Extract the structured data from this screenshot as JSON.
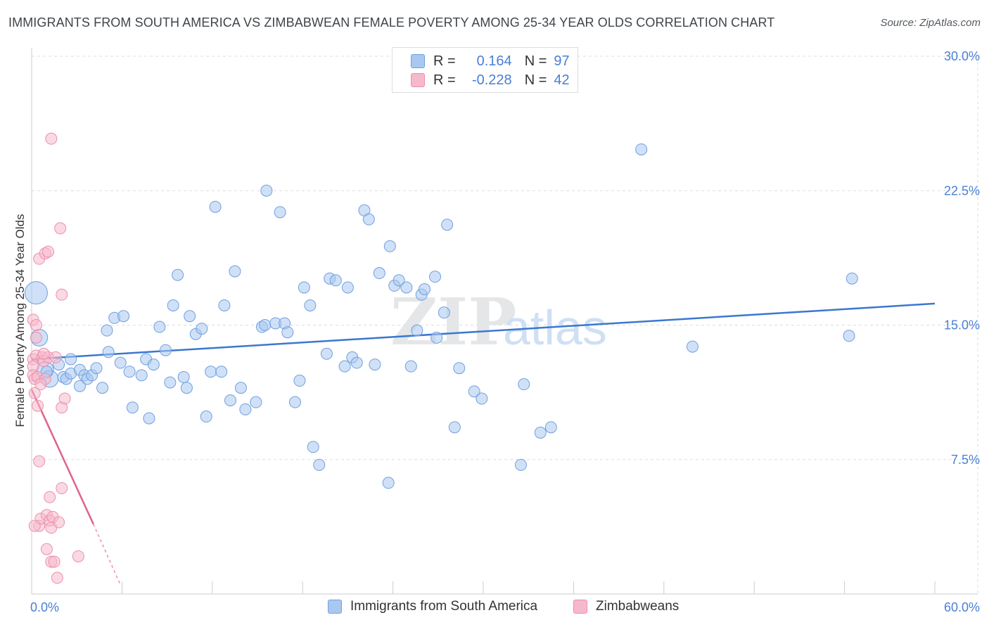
{
  "title": "IMMIGRANTS FROM SOUTH AMERICA VS ZIMBABWEAN FEMALE POVERTY AMONG 25-34 YEAR OLDS CORRELATION CHART",
  "source": "Source: ZipAtlas.com",
  "watermark": {
    "zip": "ZIP",
    "atlas": "atlas"
  },
  "legend": {
    "blue": {
      "r_label": "R =",
      "r_value": "0.164",
      "n_label": "N =",
      "n_value": "97"
    },
    "pink": {
      "r_label": "R =",
      "r_value": "-0.228",
      "n_label": "N =",
      "n_value": "42"
    }
  },
  "colors": {
    "blue_fill": "#a9c8f0",
    "blue_stroke": "#6f9fe0",
    "blue_line": "#3a78cf",
    "pink_fill": "#f6b9cc",
    "pink_stroke": "#ec8fac",
    "pink_line": "#e0628b",
    "tick_label": "#4a7fd6",
    "grid": "#dddddd"
  },
  "chart_data": {
    "type": "scatter",
    "title": "IMMIGRANTS FROM SOUTH AMERICA VS ZIMBABWEAN FEMALE POVERTY AMONG 25-34 YEAR OLDS CORRELATION CHART",
    "xlabel": "",
    "ylabel": "Female Poverty Among 25-34 Year Olds",
    "xlim": [
      0,
      60
    ],
    "ylim": [
      0,
      30
    ],
    "x_tick_labels": [
      "0.0%",
      "60.0%"
    ],
    "y_ticks": [
      7.5,
      15.0,
      22.5,
      30.0
    ],
    "y_tick_labels": [
      "7.5%",
      "15.0%",
      "22.5%",
      "30.0%"
    ],
    "grid": true,
    "series": [
      {
        "name": "Immigrants from South America",
        "color": "blue",
        "r": 0.164,
        "n": 97,
        "trend": {
          "x": [
            0,
            60
          ],
          "y": [
            13.1,
            16.2
          ]
        },
        "points": [
          {
            "x": 0.3,
            "y": 16.8,
            "s": 3
          },
          {
            "x": 0.5,
            "y": 14.3,
            "s": 2
          },
          {
            "x": 0.9,
            "y": 12.5,
            "s": 2
          },
          {
            "x": 1.2,
            "y": 12.0,
            "s": 2
          },
          {
            "x": 1.8,
            "y": 12.8,
            "s": 1
          },
          {
            "x": 2.1,
            "y": 12.1,
            "s": 1
          },
          {
            "x": 2.3,
            "y": 12.0,
            "s": 1
          },
          {
            "x": 2.6,
            "y": 12.3,
            "s": 1
          },
          {
            "x": 2.6,
            "y": 13.1,
            "s": 1
          },
          {
            "x": 3.2,
            "y": 12.5,
            "s": 1
          },
          {
            "x": 3.2,
            "y": 11.6,
            "s": 1
          },
          {
            "x": 3.5,
            "y": 12.2,
            "s": 1
          },
          {
            "x": 3.7,
            "y": 12.0,
            "s": 1
          },
          {
            "x": 4.0,
            "y": 12.2,
            "s": 1
          },
          {
            "x": 4.3,
            "y": 12.6,
            "s": 1
          },
          {
            "x": 4.7,
            "y": 11.5,
            "s": 1
          },
          {
            "x": 5.0,
            "y": 14.7,
            "s": 1
          },
          {
            "x": 5.1,
            "y": 13.5,
            "s": 1
          },
          {
            "x": 5.5,
            "y": 15.4,
            "s": 1
          },
          {
            "x": 5.9,
            "y": 12.9,
            "s": 1
          },
          {
            "x": 6.1,
            "y": 15.5,
            "s": 1
          },
          {
            "x": 6.5,
            "y": 12.4,
            "s": 1
          },
          {
            "x": 6.7,
            "y": 10.4,
            "s": 1
          },
          {
            "x": 7.3,
            "y": 12.2,
            "s": 1
          },
          {
            "x": 7.6,
            "y": 13.1,
            "s": 1
          },
          {
            "x": 7.8,
            "y": 9.8,
            "s": 1
          },
          {
            "x": 8.1,
            "y": 12.8,
            "s": 1
          },
          {
            "x": 8.5,
            "y": 14.9,
            "s": 1
          },
          {
            "x": 8.9,
            "y": 13.6,
            "s": 1
          },
          {
            "x": 9.2,
            "y": 11.8,
            "s": 1
          },
          {
            "x": 9.4,
            "y": 16.1,
            "s": 1
          },
          {
            "x": 9.7,
            "y": 17.8,
            "s": 1
          },
          {
            "x": 10.1,
            "y": 12.1,
            "s": 1
          },
          {
            "x": 10.3,
            "y": 11.5,
            "s": 1
          },
          {
            "x": 10.5,
            "y": 15.5,
            "s": 1
          },
          {
            "x": 10.9,
            "y": 14.5,
            "s": 1
          },
          {
            "x": 11.3,
            "y": 14.8,
            "s": 1
          },
          {
            "x": 11.6,
            "y": 9.9,
            "s": 1
          },
          {
            "x": 11.9,
            "y": 12.4,
            "s": 1
          },
          {
            "x": 12.2,
            "y": 21.6,
            "s": 1
          },
          {
            "x": 12.6,
            "y": 12.4,
            "s": 1
          },
          {
            "x": 12.8,
            "y": 16.1,
            "s": 1
          },
          {
            "x": 13.2,
            "y": 10.8,
            "s": 1
          },
          {
            "x": 13.5,
            "y": 18.0,
            "s": 1
          },
          {
            "x": 13.9,
            "y": 11.5,
            "s": 1
          },
          {
            "x": 14.2,
            "y": 10.3,
            "s": 1
          },
          {
            "x": 14.9,
            "y": 10.7,
            "s": 1
          },
          {
            "x": 15.3,
            "y": 14.9,
            "s": 1
          },
          {
            "x": 15.5,
            "y": 15.0,
            "s": 1
          },
          {
            "x": 15.6,
            "y": 22.5,
            "s": 1
          },
          {
            "x": 16.2,
            "y": 15.1,
            "s": 1
          },
          {
            "x": 16.5,
            "y": 21.3,
            "s": 1
          },
          {
            "x": 16.8,
            "y": 15.1,
            "s": 1
          },
          {
            "x": 17.0,
            "y": 14.6,
            "s": 1
          },
          {
            "x": 17.5,
            "y": 10.7,
            "s": 1
          },
          {
            "x": 17.8,
            "y": 11.9,
            "s": 1
          },
          {
            "x": 18.1,
            "y": 17.1,
            "s": 1
          },
          {
            "x": 18.5,
            "y": 16.1,
            "s": 1
          },
          {
            "x": 18.7,
            "y": 8.2,
            "s": 1
          },
          {
            "x": 19.1,
            "y": 7.2,
            "s": 1
          },
          {
            "x": 19.6,
            "y": 13.4,
            "s": 1
          },
          {
            "x": 19.8,
            "y": 17.6,
            "s": 1
          },
          {
            "x": 20.2,
            "y": 17.5,
            "s": 1
          },
          {
            "x": 20.8,
            "y": 12.7,
            "s": 1
          },
          {
            "x": 21.0,
            "y": 17.1,
            "s": 1
          },
          {
            "x": 21.3,
            "y": 13.2,
            "s": 1
          },
          {
            "x": 21.6,
            "y": 12.9,
            "s": 1
          },
          {
            "x": 22.1,
            "y": 21.4,
            "s": 1
          },
          {
            "x": 22.4,
            "y": 20.9,
            "s": 1
          },
          {
            "x": 22.8,
            "y": 12.8,
            "s": 1
          },
          {
            "x": 23.1,
            "y": 17.9,
            "s": 1
          },
          {
            "x": 23.7,
            "y": 6.2,
            "s": 1
          },
          {
            "x": 23.8,
            "y": 19.4,
            "s": 1
          },
          {
            "x": 24.1,
            "y": 17.2,
            "s": 1
          },
          {
            "x": 24.4,
            "y": 17.5,
            "s": 1
          },
          {
            "x": 24.9,
            "y": 17.1,
            "s": 1
          },
          {
            "x": 25.2,
            "y": 12.7,
            "s": 1
          },
          {
            "x": 25.6,
            "y": 14.7,
            "s": 1
          },
          {
            "x": 25.9,
            "y": 16.7,
            "s": 1
          },
          {
            "x": 26.1,
            "y": 17.0,
            "s": 1
          },
          {
            "x": 26.8,
            "y": 17.7,
            "s": 1
          },
          {
            "x": 26.9,
            "y": 14.3,
            "s": 1
          },
          {
            "x": 27.4,
            "y": 15.7,
            "s": 1
          },
          {
            "x": 27.6,
            "y": 20.6,
            "s": 1
          },
          {
            "x": 28.1,
            "y": 9.3,
            "s": 1
          },
          {
            "x": 28.4,
            "y": 12.6,
            "s": 1
          },
          {
            "x": 29.4,
            "y": 11.3,
            "s": 1
          },
          {
            "x": 29.9,
            "y": 10.9,
            "s": 1
          },
          {
            "x": 32.5,
            "y": 7.2,
            "s": 1
          },
          {
            "x": 32.7,
            "y": 11.7,
            "s": 1
          },
          {
            "x": 33.8,
            "y": 9.0,
            "s": 1
          },
          {
            "x": 34.5,
            "y": 9.3,
            "s": 1
          },
          {
            "x": 40.5,
            "y": 24.8,
            "s": 1
          },
          {
            "x": 43.9,
            "y": 13.8,
            "s": 1
          },
          {
            "x": 54.3,
            "y": 14.4,
            "s": 1
          },
          {
            "x": 54.5,
            "y": 17.6,
            "s": 1
          },
          {
            "x": 1.0,
            "y": 12.4,
            "s": 1
          }
        ]
      },
      {
        "name": "Zimbabweans",
        "color": "pink",
        "r": -0.228,
        "n": 42,
        "trend": {
          "x": [
            0,
            4.1
          ],
          "y": [
            11.4,
            3.9
          ]
        },
        "trend_dashed": {
          "x": [
            4.1,
            5.9
          ],
          "y": [
            3.9,
            0.5
          ]
        },
        "points": [
          {
            "x": 0.1,
            "y": 15.3
          },
          {
            "x": 0.1,
            "y": 13.1
          },
          {
            "x": 0.1,
            "y": 12.7
          },
          {
            "x": 0.1,
            "y": 12.2
          },
          {
            "x": 0.2,
            "y": 11.2
          },
          {
            "x": 0.2,
            "y": 12.0
          },
          {
            "x": 0.3,
            "y": 15.0
          },
          {
            "x": 0.3,
            "y": 14.3
          },
          {
            "x": 0.3,
            "y": 13.3
          },
          {
            "x": 0.4,
            "y": 12.1
          },
          {
            "x": 0.4,
            "y": 10.5
          },
          {
            "x": 0.5,
            "y": 18.7
          },
          {
            "x": 0.5,
            "y": 7.4
          },
          {
            "x": 0.5,
            "y": 3.8
          },
          {
            "x": 0.6,
            "y": 4.2
          },
          {
            "x": 0.7,
            "y": 13.2
          },
          {
            "x": 0.8,
            "y": 13.0
          },
          {
            "x": 0.9,
            "y": 19.0
          },
          {
            "x": 0.9,
            "y": 12.0
          },
          {
            "x": 1.0,
            "y": 4.4
          },
          {
            "x": 1.0,
            "y": 2.5
          },
          {
            "x": 1.1,
            "y": 19.1
          },
          {
            "x": 1.1,
            "y": 13.2
          },
          {
            "x": 1.2,
            "y": 5.4
          },
          {
            "x": 1.2,
            "y": 4.1
          },
          {
            "x": 1.3,
            "y": 1.8
          },
          {
            "x": 1.3,
            "y": 3.7
          },
          {
            "x": 1.3,
            "y": 25.4
          },
          {
            "x": 1.4,
            "y": 4.3
          },
          {
            "x": 1.5,
            "y": 1.8
          },
          {
            "x": 1.6,
            "y": 13.2
          },
          {
            "x": 0.6,
            "y": 11.7
          },
          {
            "x": 1.7,
            "y": 0.9
          },
          {
            "x": 1.8,
            "y": 4.0
          },
          {
            "x": 1.9,
            "y": 20.4
          },
          {
            "x": 2.0,
            "y": 16.7
          },
          {
            "x": 2.0,
            "y": 10.4
          },
          {
            "x": 2.0,
            "y": 5.9
          },
          {
            "x": 2.2,
            "y": 10.9
          },
          {
            "x": 3.1,
            "y": 2.1
          },
          {
            "x": 0.8,
            "y": 13.4
          },
          {
            "x": 0.2,
            "y": 3.8
          }
        ]
      }
    ]
  },
  "bottom_legend": {
    "blue_label": "Immigrants from South America",
    "pink_label": "Zimbabweans"
  }
}
